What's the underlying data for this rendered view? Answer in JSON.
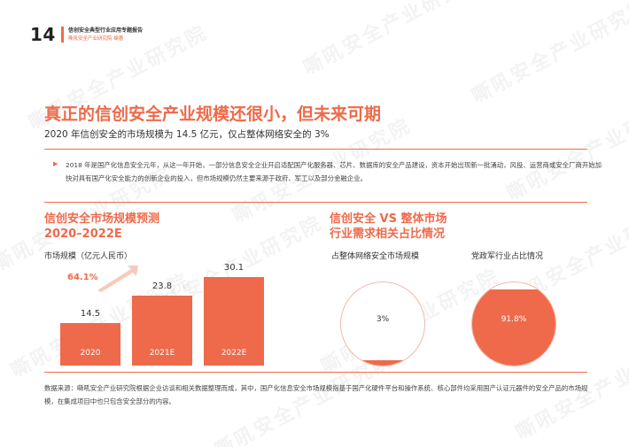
{
  "header": {
    "page_number": "14",
    "report_title": "信创安全典型行业应用专题报告",
    "publisher": "嘶吼安全产业研究院 编著"
  },
  "watermark": {
    "text": "嘶吼安全产业研究院"
  },
  "main": {
    "title": "真正的信创安全产业规模还很小，但未来可期",
    "subtitle": "2020 年信创安全的市场规模为 14.5 亿元，仅占整体网络安全的 3%",
    "intro": "2018 年是国产化信息安全元年，从这一年开始，一部分信息安全企业开启适配国产化服务器、芯片、数据库的安全产品建设，资本开始出现新一批涌动，风投、运营商或安全厂商开始加快对具有国产化安全能力的创新企业的投入，但市场规模仍然主要来源于政府、军工以及部分金融企业。"
  },
  "left_section": {
    "title_line1": "信创安全市场规模预测",
    "title_line2": "2020–2022E",
    "axis_label": "市场规模（亿元人民币）",
    "growth_label": "64.1%"
  },
  "right_section": {
    "title_line1": "信创安全 VS 整体市场",
    "title_line2": "行业需求相关占比情况",
    "circles": [
      {
        "label": "占整体网络安全市场规模",
        "value_text": "3%",
        "fraction": 0.03
      },
      {
        "label": "党政军行业占比情况",
        "value_text": "91.8%",
        "fraction": 0.918
      }
    ]
  },
  "chart_data": {
    "type": "bar",
    "categories": [
      "2020",
      "2021E",
      "2022E"
    ],
    "values": [
      14.5,
      23.8,
      30.1
    ],
    "value_labels": [
      "14.5",
      "23.8",
      "30.1"
    ],
    "title": "信创安全市场规模预测 2020–2022E",
    "ylabel": "市场规模（亿元人民币）",
    "ylim": [
      0,
      30.1
    ],
    "annotation": "64.1%",
    "color": "#ee6a4a"
  },
  "footnote": "数据来源：嘶吼安全产业研究院根据企业访谈和相关数据整理而成，其中，国产化信息安全市场规模指基于国产化硬件平台和操作系统、核心部件均采用国产认证元器件的安全产品的市场规模，在集成项目中也只包含安全部分的内容。",
  "colors": {
    "accent": "#ee6a4a",
    "text": "#333333"
  }
}
